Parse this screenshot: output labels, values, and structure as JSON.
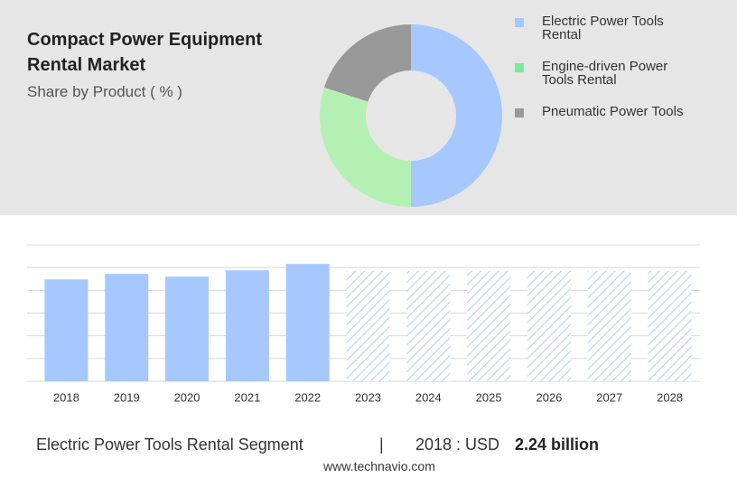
{
  "header": {
    "title": "Compact Power Equipment Rental Market",
    "subtitle": "Share by Product ( % )"
  },
  "chart_data": [
    {
      "type": "pie",
      "donut": true,
      "categories": [
        "Electric Power Tools Rental",
        "Engine-driven Power Tools Rental",
        "Pneumatic Power Tools"
      ],
      "values": [
        50,
        30,
        20
      ],
      "colors": [
        "#a6c8ff",
        "#b4f0b4",
        "#999999"
      ],
      "legend_colors": [
        "#a6c8ff",
        "#7ee89a",
        "#999999"
      ]
    },
    {
      "type": "bar",
      "categories": [
        "2018",
        "2019",
        "2020",
        "2021",
        "2022",
        "2023",
        "2024",
        "2025",
        "2026",
        "2027",
        "2028"
      ],
      "values": [
        2.24,
        2.36,
        2.3,
        2.44,
        2.58,
        null,
        null,
        null,
        null,
        null,
        null
      ],
      "color": "#a6c8ff",
      "ylim": [
        0,
        3
      ],
      "yticks": [
        0,
        0.5,
        1,
        1.5,
        2,
        2.5,
        3
      ],
      "grid": true
    }
  ],
  "footer": {
    "segment": "Electric Power Tools Rental Segment",
    "separator": "|",
    "year_label": "2018 : USD",
    "value_text": "2.24 billion",
    "source": "www.technavio.com"
  }
}
